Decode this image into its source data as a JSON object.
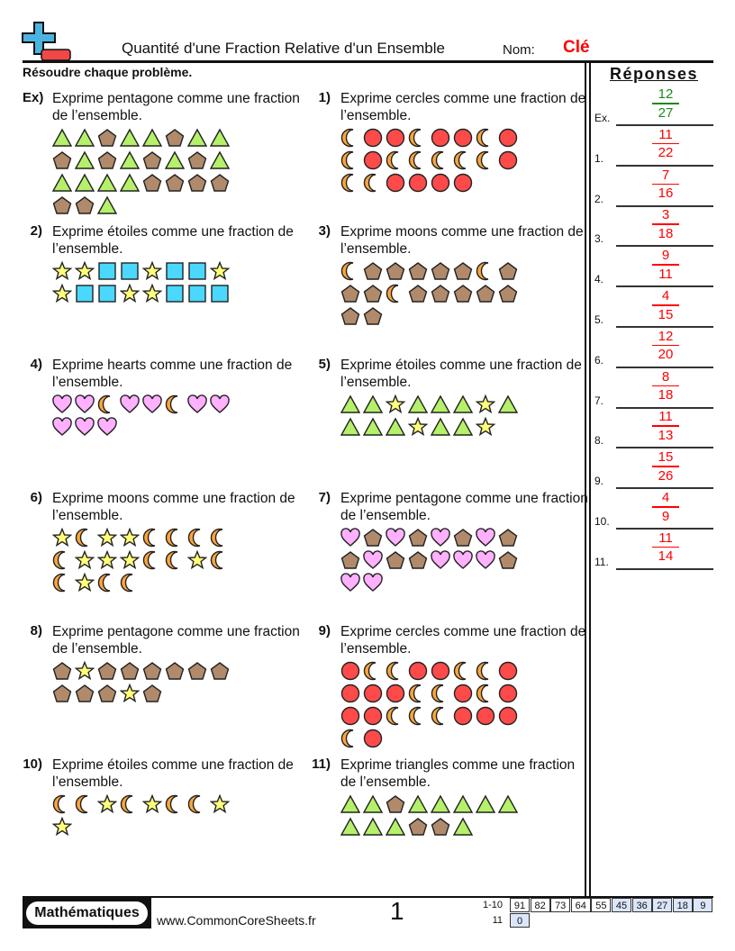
{
  "header": {
    "title": "Quantité d'une Fraction Relative d'un Ensemble",
    "name_label": "Nom:",
    "name_value": "Clé",
    "instructions": "Résoudre chaque problème.",
    "answers_title": "Réponses"
  },
  "colors": {
    "triangle": "#b5f06a",
    "pentagon": "#b08a6a",
    "circle": "#ff4a4a",
    "moon": "#ffa53a",
    "star": "#ffff7a",
    "square": "#4ad8ff",
    "heart": "#ffb0ff",
    "answer_red": "#ff0000",
    "example_green": "#1a8a1a"
  },
  "shape_legend": {
    "T": "triangle",
    "P": "pentagon",
    "C": "circle",
    "M": "moon",
    "S": "star",
    "Q": "square",
    "H": "heart"
  },
  "problems": [
    {
      "num": "Ex)",
      "text": "Exprime pentagone comme une fraction de l’ensemble.",
      "rows": [
        "TTPTTPTT",
        "PTPTPTPT",
        "TTTTPPPP",
        "PPT"
      ]
    },
    {
      "num": "1)",
      "text": "Exprime cercles comme une fraction de l’ensemble.",
      "rows": [
        "MCCMCCMC",
        "MCMMMMMC",
        "MMCCCC"
      ]
    },
    {
      "num": "2)",
      "text": "Exprime étoiles comme une fraction de l’ensemble.",
      "rows": [
        "SSQQSQQS",
        "SQQSSQQQ"
      ]
    },
    {
      "num": "3)",
      "text": "Exprime moons comme une fraction de l’ensemble.",
      "rows": [
        "MPPPPPMP",
        "PPMPPPPP",
        "PP"
      ]
    },
    {
      "num": "4)",
      "text": "Exprime hearts comme une fraction de l’ensemble.",
      "rows": [
        "HHMHHMHH",
        "HHH"
      ]
    },
    {
      "num": "5)",
      "text": "Exprime étoiles comme une fraction de l’ensemble.",
      "rows": [
        "TTSTTTST",
        "TTTSTTS"
      ]
    },
    {
      "num": "6)",
      "text": "Exprime moons comme une fraction de l’ensemble.",
      "rows": [
        "SMSSMMMM",
        "MSSSMMSM",
        "MSMM"
      ]
    },
    {
      "num": "7)",
      "text": "Exprime pentagone comme une fraction de l’ensemble.",
      "rows": [
        "HPHPHPHP",
        "PHPPHHHP",
        "HH"
      ]
    },
    {
      "num": "8)",
      "text": "Exprime pentagone comme une fraction de l’ensemble.",
      "rows": [
        "PSPPPPPP",
        "PPPSP"
      ]
    },
    {
      "num": "9)",
      "text": "Exprime cercles comme une fraction de l’ensemble.",
      "rows": [
        "CMMCCMMC",
        "CCCMMCMC",
        "CCMMMCCC",
        "MC"
      ]
    },
    {
      "num": "10)",
      "text": "Exprime étoiles comme une fraction de l’ensemble.",
      "rows": [
        "MMSMSMMS",
        "S"
      ]
    },
    {
      "num": "11)",
      "text": "Exprime triangles comme une fraction de l’ensemble.",
      "rows": [
        "TTPTTTTT",
        "TTTPPT"
      ]
    }
  ],
  "answers": [
    {
      "label": "Ex.",
      "num": "12",
      "den": "27"
    },
    {
      "label": "1.",
      "num": "11",
      "den": "22"
    },
    {
      "label": "2.",
      "num": "7",
      "den": "16"
    },
    {
      "label": "3.",
      "num": "3",
      "den": "18"
    },
    {
      "label": "4.",
      "num": "9",
      "den": "11"
    },
    {
      "label": "5.",
      "num": "4",
      "den": "15"
    },
    {
      "label": "6.",
      "num": "12",
      "den": "20"
    },
    {
      "label": "7.",
      "num": "8",
      "den": "18"
    },
    {
      "label": "8.",
      "num": "11",
      "den": "13"
    },
    {
      "label": "9.",
      "num": "15",
      "den": "26"
    },
    {
      "label": "10.",
      "num": "4",
      "den": "9"
    },
    {
      "label": "11.",
      "num": "11",
      "den": "14"
    }
  ],
  "footer": {
    "brand": "Mathématiques",
    "site": "www.CommonCoreSheets.fr",
    "page": "1",
    "key_rows": [
      {
        "label": "1-10",
        "values": [
          "91",
          "82",
          "73",
          "64",
          "55",
          "45",
          "36",
          "27",
          "18",
          "9"
        ]
      },
      {
        "label": "11",
        "values": [
          "0"
        ]
      }
    ]
  }
}
